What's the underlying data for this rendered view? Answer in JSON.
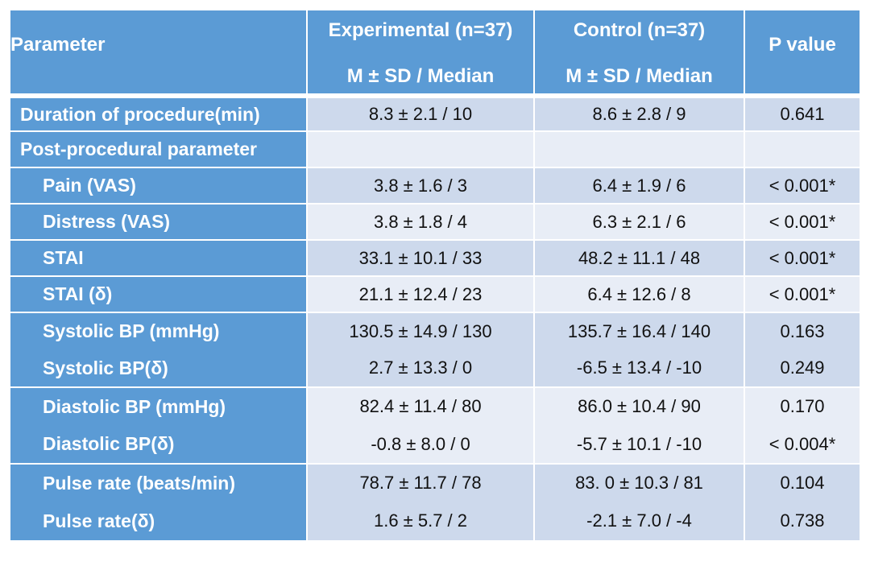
{
  "header": {
    "parameter": "Parameter",
    "experimental_title": "Experimental (n=37)",
    "experimental_sub": "M ± SD / Median",
    "control_title": "Control (n=37)",
    "control_sub": "M ± SD / Median",
    "p_value": "P value"
  },
  "rows": [
    {
      "param": "Duration of procedure(min)",
      "exp": "8.3 ± 2.1 / 10",
      "ctrl": "8.6 ± 2.8 / 9",
      "p": "0.641"
    },
    {
      "param": "Post-procedural parameter",
      "exp": "",
      "ctrl": "",
      "p": ""
    },
    {
      "param": "Pain (VAS)",
      "exp": "3.8 ± 1.6 / 3",
      "ctrl": "6.4 ± 1.9 / 6",
      "p": "< 0.001*"
    },
    {
      "param": "Distress (VAS)",
      "exp": "3.8 ± 1.8 / 4",
      "ctrl": "6.3 ± 2.1 / 6",
      "p": "< 0.001*"
    },
    {
      "param": "STAI",
      "exp": "33.1 ± 10.1 / 33",
      "ctrl": "48.2 ± 11.1 / 48",
      "p": "< 0.001*"
    },
    {
      "param": "STAI (δ)",
      "exp": "21.1 ± 12.4 / 23",
      "ctrl": "6.4 ± 12.6 / 8",
      "p": "< 0.001*"
    },
    {
      "param": "Systolic BP (mmHg)",
      "exp": "130.5 ± 14.9 / 130",
      "ctrl": "135.7 ± 16.4 / 140",
      "p": "0.163"
    },
    {
      "param": "Systolic BP(δ)",
      "exp": "2.7 ± 13.3 / 0",
      "ctrl": "-6.5 ± 13.4 / -10",
      "p": "0.249"
    },
    {
      "param": "Diastolic BP (mmHg)",
      "exp": "82.4 ± 11.4 / 80",
      "ctrl": "86.0 ± 10.4 / 90",
      "p": "0.170"
    },
    {
      "param": "Diastolic BP(δ)",
      "exp": "-0.8 ± 8.0 / 0",
      "ctrl": "-5.7 ± 10.1 / -10",
      "p": "< 0.004*"
    },
    {
      "param": "Pulse rate (beats/min)",
      "exp": "78.7 ± 11.7 / 78",
      "ctrl": "83. 0 ± 10.3 / 81",
      "p": "0.104"
    },
    {
      "param": "Pulse rate(δ)",
      "exp": "1.6 ± 5.7 / 2",
      "ctrl": "-2.1 ± 7.0 / -4",
      "p": "0.738"
    }
  ]
}
